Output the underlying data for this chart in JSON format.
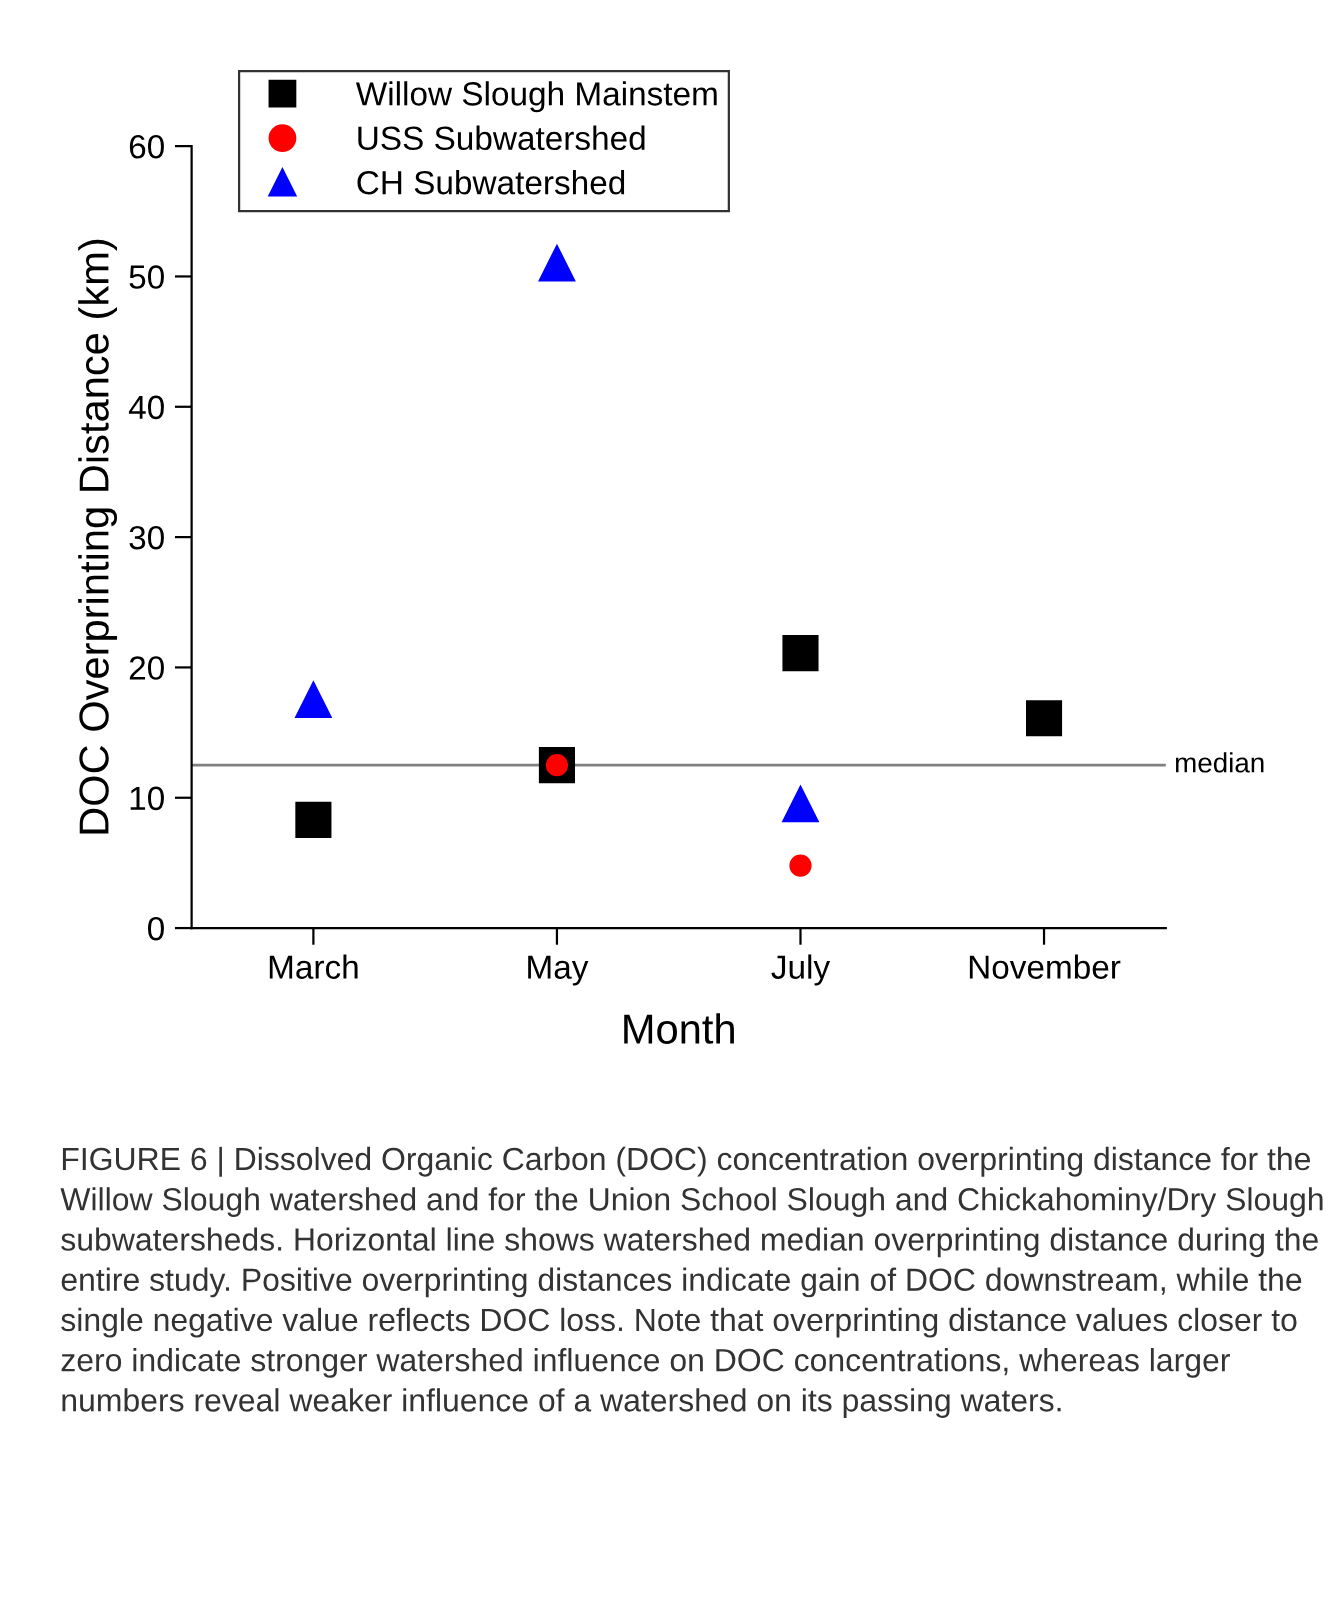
{
  "chart_data": {
    "type": "scatter",
    "xlabel": "Month",
    "ylabel": "DOC Overprinting Distance (km)",
    "categories": [
      "March",
      "May",
      "July",
      "November"
    ],
    "series": [
      {
        "name": "Willow Slough Mainstem",
        "color": "#000000",
        "marker": "square",
        "values": [
          8.3,
          12.5,
          21.1,
          16.1
        ]
      },
      {
        "name": "USS Subwatershed",
        "color": "#ff0000",
        "marker": "circle",
        "values": [
          null,
          12.5,
          4.8,
          null
        ]
      },
      {
        "name": "CH Subwatershed",
        "color": "#0000ff",
        "marker": "triangle",
        "values": [
          17.5,
          51,
          9.5,
          null
        ]
      }
    ],
    "ylim": [
      0,
      60
    ],
    "yticks": [
      0,
      10,
      20,
      30,
      40,
      50,
      60
    ],
    "ref_lines": [
      {
        "axis": "y",
        "value": 12.5,
        "label": "median",
        "color": "#808080"
      }
    ],
    "legend": "top left",
    "grid": false,
    "annotations": [
      "FIGURE 6 | Dissolved Organic Carbon (DOC) concentration overprinting distance for the Willow Slough watershed and for the Union School Slough and Chickahominy/Dry Slough subwatersheds. Horizontal line shows watershed median overprinting distance during the entire study. Positive overprinting distances indicate gain of DOC downstream, while the single negative value reflects DOC loss. Note that overprinting distance values closer to zero indicate stronger watershed influence on DOC concentrations, whereas larger numbers reveal weaker influence of a watershed on its passing waters."
    ]
  }
}
